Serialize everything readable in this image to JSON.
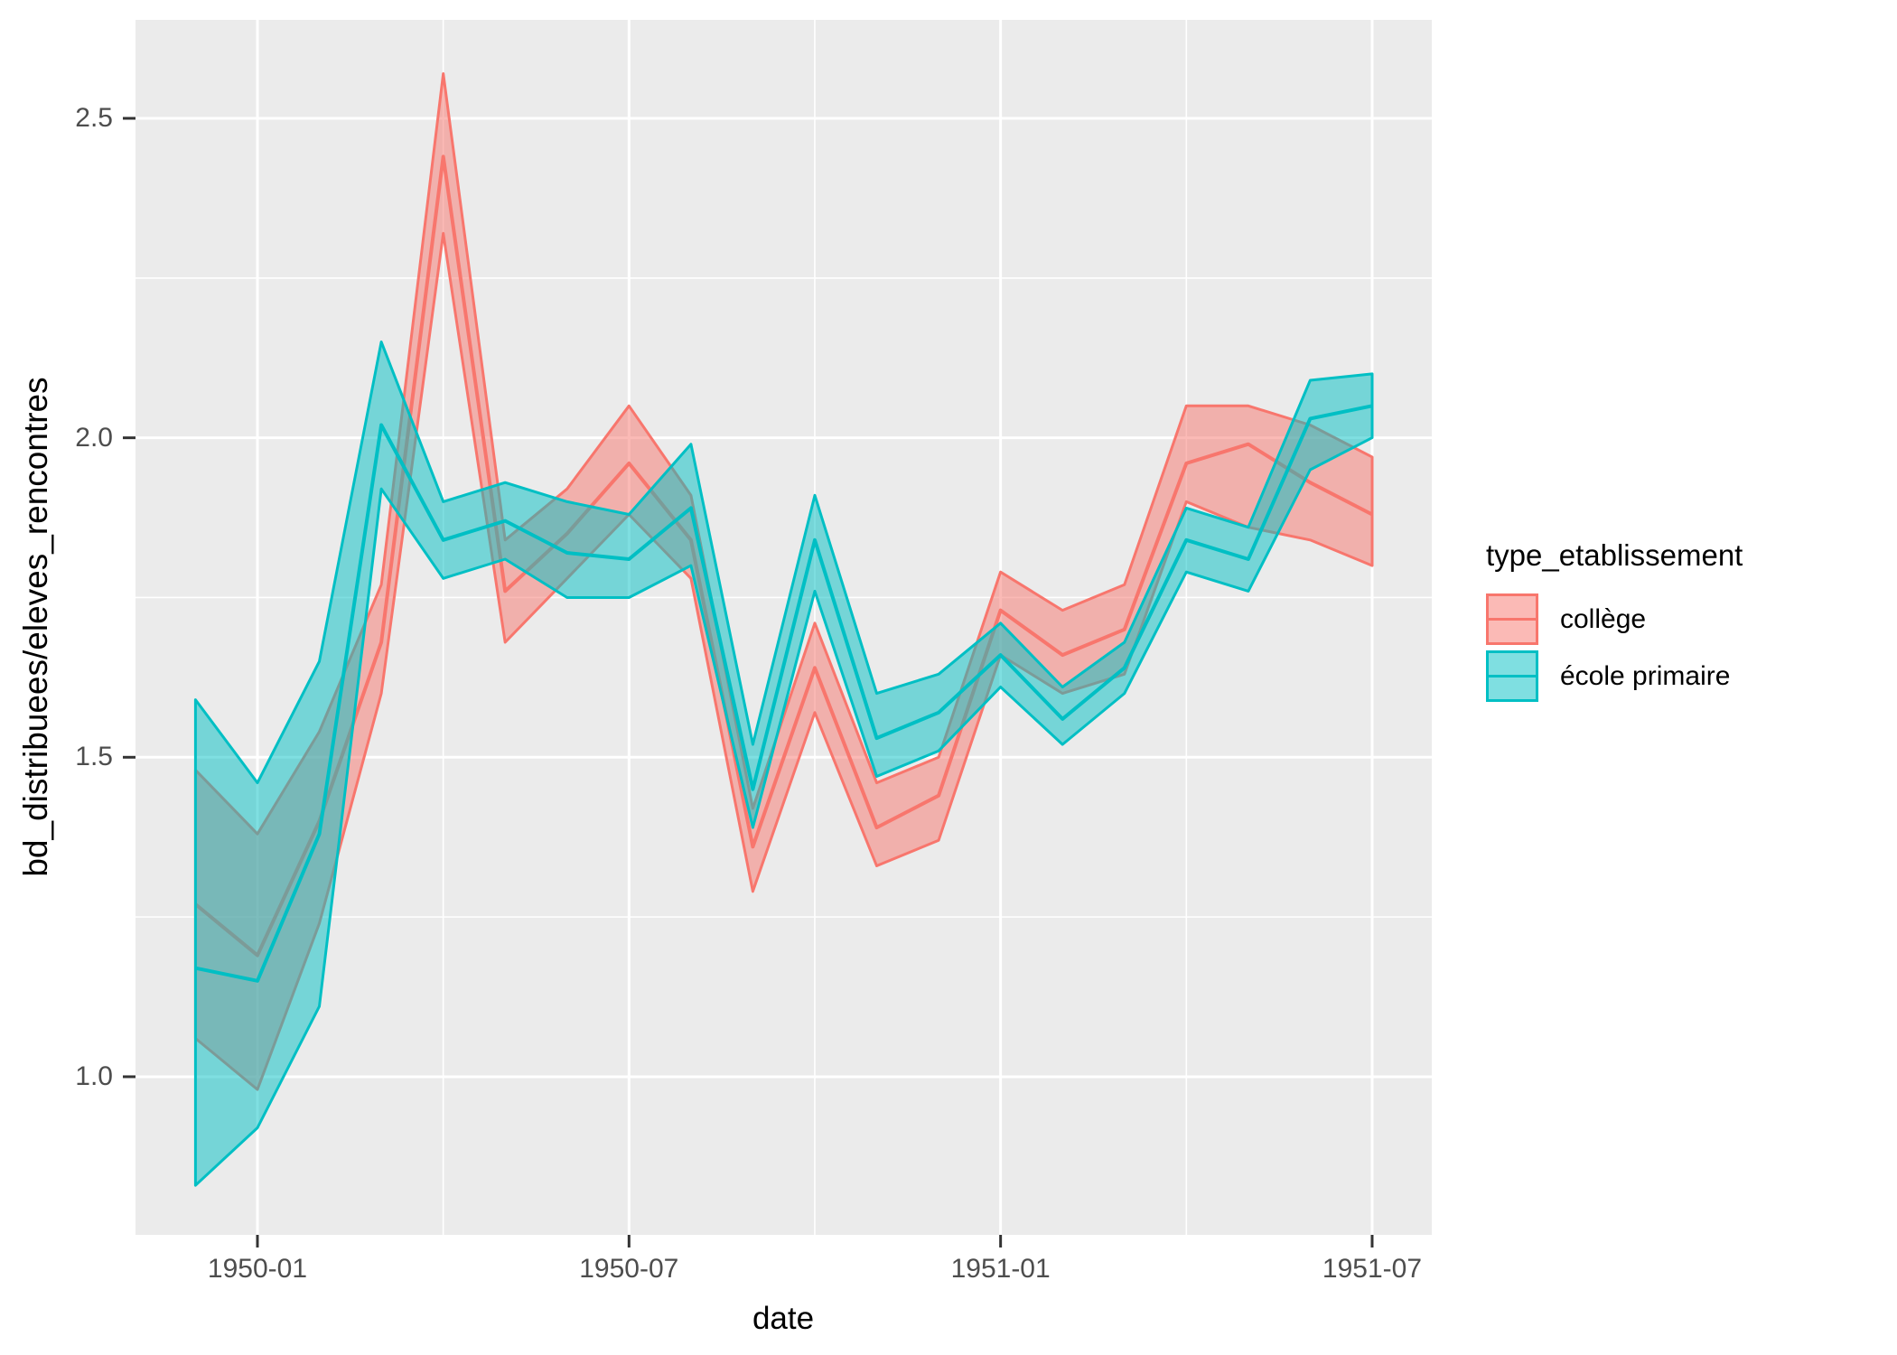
{
  "chart_data": {
    "type": "line",
    "title": "",
    "xlabel": "date",
    "ylabel": "bd_distribuees/eleves_rencontres",
    "legend_title": "type_etablissement",
    "legend_position": "right",
    "grid": {
      "panel_bg": "#EBEBEB",
      "major_color": "#FFFFFF",
      "minor_color": "#FFFFFF",
      "tick_color": "#333333"
    },
    "x": [
      "1949-12",
      "1950-01",
      "1950-02",
      "1950-03",
      "1950-04",
      "1950-05",
      "1950-06",
      "1950-07",
      "1950-08",
      "1950-09",
      "1950-10",
      "1950-11",
      "1950-12",
      "1951-01",
      "1951-02",
      "1951-03",
      "1951-04",
      "1951-05",
      "1951-06",
      "1951-07"
    ],
    "series": [
      {
        "name": "collège",
        "color": "#F8766D",
        "fill_opacity": 0.5,
        "values": [
          1.27,
          1.19,
          1.4,
          1.68,
          2.44,
          1.76,
          1.85,
          1.96,
          1.84,
          1.36,
          1.64,
          1.39,
          1.44,
          1.73,
          1.66,
          1.7,
          1.96,
          1.99,
          1.93,
          1.88
        ],
        "lower": [
          1.06,
          0.98,
          1.24,
          1.6,
          2.32,
          1.68,
          1.78,
          1.88,
          1.78,
          1.29,
          1.57,
          1.33,
          1.37,
          1.66,
          1.6,
          1.63,
          1.9,
          1.86,
          1.84,
          1.8
        ],
        "upper": [
          1.48,
          1.38,
          1.54,
          1.77,
          2.57,
          1.84,
          1.92,
          2.05,
          1.91,
          1.42,
          1.71,
          1.46,
          1.5,
          1.79,
          1.73,
          1.77,
          2.05,
          2.05,
          2.02,
          1.97
        ]
      },
      {
        "name": "école primaire",
        "color": "#00BFC4",
        "fill_opacity": 0.5,
        "values": [
          1.17,
          1.15,
          1.38,
          2.02,
          1.84,
          1.87,
          1.82,
          1.81,
          1.89,
          1.45,
          1.84,
          1.53,
          1.57,
          1.66,
          1.56,
          1.64,
          1.84,
          1.81,
          2.03,
          2.05
        ],
        "lower": [
          0.83,
          0.92,
          1.11,
          1.92,
          1.78,
          1.81,
          1.75,
          1.75,
          1.8,
          1.39,
          1.76,
          1.47,
          1.51,
          1.61,
          1.52,
          1.6,
          1.79,
          1.76,
          1.95,
          2.0
        ],
        "upper": [
          1.59,
          1.46,
          1.65,
          2.15,
          1.9,
          1.93,
          1.9,
          1.88,
          1.99,
          1.52,
          1.91,
          1.6,
          1.63,
          1.71,
          1.61,
          1.68,
          1.89,
          1.86,
          2.09,
          2.1
        ]
      }
    ],
    "ylim": [
      0.7525,
      2.6541
    ],
    "xlim_index": [
      -0.969,
      19.963
    ],
    "y_major_ticks": {
      "labels": [
        "2.5",
        "2.0",
        "1.5",
        "1.0"
      ],
      "values": [
        2.5,
        2.0,
        1.5,
        1.0
      ]
    },
    "y_minor_values": [
      2.25,
      1.75,
      1.25
    ],
    "x_major_ticks": {
      "labels": [
        "1950-01",
        "1950-07",
        "1951-01",
        "1951-07"
      ],
      "indices": [
        1,
        7,
        13,
        19
      ]
    },
    "x_minor_indices": [
      4,
      10,
      16
    ]
  }
}
